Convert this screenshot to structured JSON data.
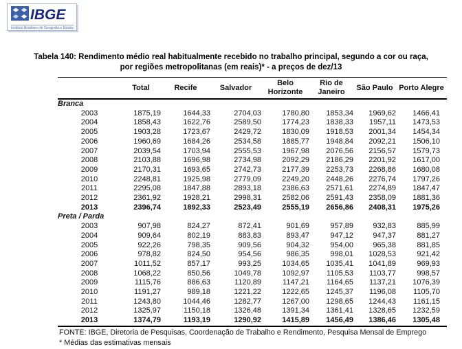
{
  "logo": {
    "name": "IBGE",
    "subtext": "Instituto Brasileiro de Geografia e Estatística",
    "brand_color": "#16277d",
    "icon_color": "#3d5fa8"
  },
  "table": {
    "title_line1": "Tabela 140: Rendimento médio real habitualmente recebido no trabalho principal, segundo a cor ou raça,",
    "title_line2": "por regiões metropolitanas (em reais)* - a preços de dez/13",
    "columns": [
      "Total",
      "Recife",
      "Salvador",
      "Belo Horizonte",
      "Rio de Janeiro",
      "São Paulo",
      "Porto Alegre"
    ],
    "sections": [
      {
        "label": "Branca",
        "rows": [
          {
            "year": "2003",
            "values": [
              "1875,19",
              "1644,33",
              "2704,03",
              "1780,80",
              "1853,34",
              "1969,62",
              "1466,41"
            ],
            "bold": false
          },
          {
            "year": "2004",
            "values": [
              "1858,43",
              "1622,76",
              "2589,50",
              "1774,23",
              "1838,33",
              "1957,11",
              "1473,53"
            ],
            "bold": false
          },
          {
            "year": "2005",
            "values": [
              "1903,28",
              "1723,67",
              "2429,72",
              "1830,09",
              "1918,53",
              "2001,34",
              "1454,34"
            ],
            "bold": false
          },
          {
            "year": "2006",
            "values": [
              "1960,69",
              "1684,26",
              "2534,58",
              "1885,77",
              "1948,84",
              "2092,21",
              "1506,10"
            ],
            "bold": false
          },
          {
            "year": "2007",
            "values": [
              "2039,54",
              "1703,94",
              "2555,53",
              "1967,98",
              "2076,56",
              "2156,57",
              "1579,73"
            ],
            "bold": false
          },
          {
            "year": "2008",
            "values": [
              "2103,88",
              "1696,98",
              "2734,98",
              "2092,29",
              "2186,29",
              "2201,92",
              "1617,00"
            ],
            "bold": false
          },
          {
            "year": "2009",
            "values": [
              "2170,31",
              "1693,65",
              "2742,73",
              "2177,39",
              "2253,73",
              "2268,86",
              "1680,08"
            ],
            "bold": false
          },
          {
            "year": "2010",
            "values": [
              "2248,81",
              "1925,98",
              "2779,09",
              "2249,20",
              "2448,26",
              "2276,74",
              "1797,26"
            ],
            "bold": false
          },
          {
            "year": "2011",
            "values": [
              "2295,08",
              "1847,88",
              "2893,18",
              "2386,63",
              "2571,61",
              "2274,89",
              "1847,47"
            ],
            "bold": false
          },
          {
            "year": "2012",
            "values": [
              "2361,92",
              "1928,21",
              "2998,31",
              "2582,06",
              "2591,43",
              "2358,09",
              "1881,36"
            ],
            "bold": false
          },
          {
            "year": "2013",
            "values": [
              "2396,74",
              "1892,33",
              "2523,49",
              "2555,19",
              "2656,86",
              "2408,31",
              "1975,26"
            ],
            "bold": true
          }
        ]
      },
      {
        "label": "Preta / Parda",
        "rows": [
          {
            "year": "2003",
            "values": [
              "907,98",
              "824,27",
              "872,41",
              "901,69",
              "957,89",
              "932,83",
              "885,99"
            ],
            "bold": false
          },
          {
            "year": "2004",
            "values": [
              "909,64",
              "802,19",
              "883,83",
              "893,47",
              "947,12",
              "947,37",
              "881,27"
            ],
            "bold": false
          },
          {
            "year": "2005",
            "values": [
              "922,26",
              "798,35",
              "909,56",
              "904,32",
              "954,00",
              "965,38",
              "881,85"
            ],
            "bold": false
          },
          {
            "year": "2006",
            "values": [
              "978,82",
              "824,50",
              "954,56",
              "986,35",
              "998,01",
              "1028,53",
              "921,42"
            ],
            "bold": false
          },
          {
            "year": "2007",
            "values": [
              "1011,52",
              "857,17",
              "993,25",
              "1034,65",
              "1035,41",
              "1041,89",
              "969,93"
            ],
            "bold": false
          },
          {
            "year": "2008",
            "values": [
              "1068,22",
              "850,56",
              "1049,78",
              "1092,97",
              "1105,53",
              "1103,77",
              "998,57"
            ],
            "bold": false
          },
          {
            "year": "2009",
            "values": [
              "1115,76",
              "886,63",
              "1120,89",
              "1147,21",
              "1164,65",
              "1137,21",
              "1076,39"
            ],
            "bold": false
          },
          {
            "year": "2010",
            "values": [
              "1191,27",
              "989,18",
              "1221,22",
              "1222,65",
              "1245,37",
              "1196,08",
              "1105,70"
            ],
            "bold": false
          },
          {
            "year": "2011",
            "values": [
              "1243,80",
              "1044,46",
              "1282,77",
              "1267,00",
              "1298,65",
              "1244,43",
              "1161,15"
            ],
            "bold": false
          },
          {
            "year": "2012",
            "values": [
              "1325,97",
              "1150,18",
              "1326,48",
              "1391,34",
              "1361,41",
              "1328,65",
              "1232,59"
            ],
            "bold": false
          },
          {
            "year": "2013",
            "values": [
              "1374,79",
              "1193,19",
              "1290,92",
              "1415,89",
              "1456,49",
              "1386,46",
              "1305,48"
            ],
            "bold": true
          }
        ]
      }
    ],
    "footnote_source": "FONTE: IBGE, Diretoria de Pesquisas, Coordenação de Trabalho e Rendimento, Pesquisa Mensal de Emprego",
    "footnote_note": "* Médias das estimativas mensais"
  }
}
